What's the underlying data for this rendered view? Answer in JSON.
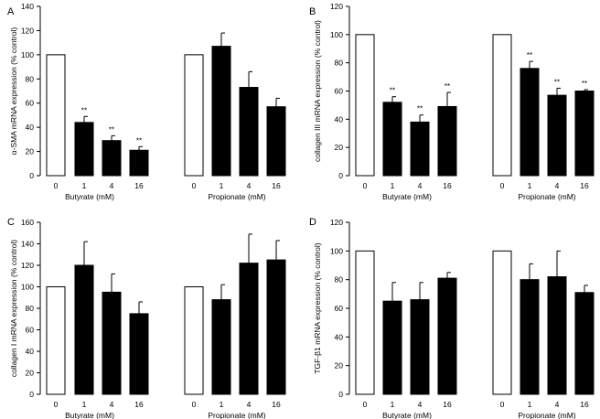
{
  "colors": {
    "control": "#ffffff",
    "treated": "#000000",
    "stroke": "#000000"
  },
  "chart_data": [
    {
      "type": "bar",
      "panel_label": "A",
      "ylabel": "α-SMA mRNA expression (% control)",
      "ylim": [
        0,
        140
      ],
      "yticks": [
        "0",
        "20",
        "40",
        "60",
        "80",
        "100",
        "120",
        "140"
      ],
      "groups": [
        {
          "name": "Butyrate (mM)",
          "categories": [
            "0",
            "1",
            "4",
            "16"
          ],
          "values": [
            100,
            44,
            29,
            21
          ],
          "errors": [
            0,
            5,
            4,
            3
          ],
          "significance": [
            "",
            "**",
            "**",
            "**"
          ]
        },
        {
          "name": "Propionate (mM)",
          "categories": [
            "0",
            "1",
            "4",
            "16"
          ],
          "values": [
            100,
            107,
            73,
            57
          ],
          "errors": [
            0,
            11,
            13,
            7
          ],
          "significance": [
            "",
            "",
            "",
            ""
          ]
        }
      ]
    },
    {
      "type": "bar",
      "panel_label": "B",
      "ylabel": "collagen III mRNA expression (% control)",
      "ylim": [
        0,
        120
      ],
      "yticks": [
        "0",
        "20",
        "40",
        "60",
        "80",
        "100",
        "120"
      ],
      "groups": [
        {
          "name": "Butyrate (mM)",
          "categories": [
            "0",
            "1",
            "4",
            "16"
          ],
          "values": [
            100,
            52,
            38,
            49
          ],
          "errors": [
            0,
            4,
            5,
            10
          ],
          "significance": [
            "",
            "**",
            "**",
            "**"
          ]
        },
        {
          "name": "Propionate (mM)",
          "categories": [
            "0",
            "1",
            "4",
            "16"
          ],
          "values": [
            100,
            76,
            57,
            60
          ],
          "errors": [
            0,
            5,
            5,
            1
          ],
          "significance": [
            "",
            "**",
            "**",
            "**"
          ]
        }
      ]
    },
    {
      "type": "bar",
      "panel_label": "C",
      "ylabel": "collagen I mRNA expression (% control)",
      "ylim": [
        0,
        160
      ],
      "yticks": [
        "0",
        "20",
        "40",
        "60",
        "80",
        "100",
        "120",
        "140",
        "160"
      ],
      "groups": [
        {
          "name": "Butyrate (mM)",
          "categories": [
            "0",
            "1",
            "4",
            "16"
          ],
          "values": [
            100,
            120,
            95,
            75
          ],
          "errors": [
            0,
            22,
            17,
            11
          ],
          "significance": [
            "",
            "",
            "",
            ""
          ]
        },
        {
          "name": "Propionate (mM)",
          "categories": [
            "0",
            "1",
            "4",
            "16"
          ],
          "values": [
            100,
            88,
            122,
            125
          ],
          "errors": [
            0,
            14,
            27,
            18
          ],
          "significance": [
            "",
            "",
            "",
            ""
          ]
        }
      ]
    },
    {
      "type": "bar",
      "panel_label": "D",
      "ylabel": "TGF-β1 mRNA expression (% control)",
      "ylim": [
        0,
        120
      ],
      "yticks": [
        "0",
        "20",
        "40",
        "60",
        "80",
        "100",
        "120"
      ],
      "groups": [
        {
          "name": "Butyrate (mM)",
          "categories": [
            "0",
            "1",
            "4",
            "16"
          ],
          "values": [
            100,
            65,
            66,
            81
          ],
          "errors": [
            0,
            13,
            12,
            4
          ],
          "significance": [
            "",
            "",
            "",
            ""
          ]
        },
        {
          "name": "Propionate (mM)",
          "categories": [
            "0",
            "1",
            "4",
            "16"
          ],
          "values": [
            100,
            80,
            82,
            71
          ],
          "errors": [
            0,
            11,
            18,
            5
          ],
          "significance": [
            "",
            "",
            "",
            ""
          ]
        }
      ]
    }
  ]
}
